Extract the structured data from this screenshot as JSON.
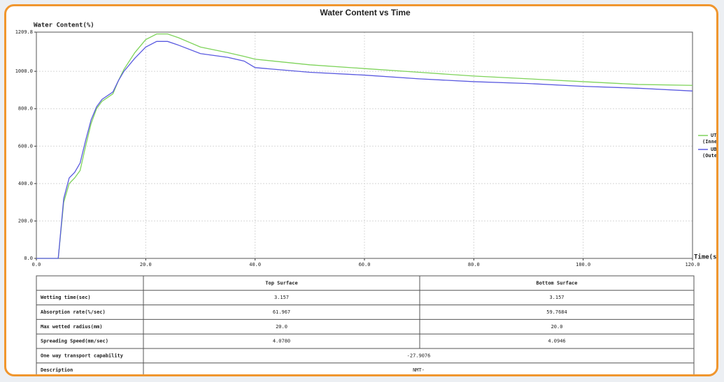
{
  "chart_data": {
    "type": "line",
    "title": "Water Content vs Time",
    "y_label": "Water Content(%)",
    "x_label": "Time(s)",
    "x": [
      0,
      4,
      5,
      6,
      7,
      8,
      9,
      10,
      11,
      12,
      14,
      15,
      16,
      18,
      20,
      22,
      24,
      26,
      30,
      35,
      38,
      40,
      50,
      60,
      70,
      80,
      90,
      100,
      110,
      120
    ],
    "series": [
      {
        "name": "UT (Inner",
        "color": "#7ed35a",
        "values": [
          0,
          0,
          300,
          400,
          430,
          470,
          600,
          720,
          800,
          840,
          880,
          950,
          1010,
          1100,
          1170,
          1200,
          1200,
          1180,
          1130,
          1100,
          1080,
          1065,
          1035,
          1015,
          995,
          975,
          960,
          945,
          930,
          925
        ]
      },
      {
        "name": "UB (Outer",
        "color": "#5a5ae0",
        "values": [
          0,
          0,
          320,
          430,
          460,
          510,
          630,
          740,
          810,
          850,
          890,
          950,
          1000,
          1070,
          1130,
          1160,
          1160,
          1140,
          1095,
          1075,
          1055,
          1020,
          995,
          980,
          960,
          945,
          935,
          920,
          910,
          895
        ]
      }
    ],
    "xlim": [
      0,
      120
    ],
    "xticks": [
      {
        "value": 0,
        "label": "0.0"
      },
      {
        "value": 20,
        "label": "20.0"
      },
      {
        "value": 40,
        "label": "40.0"
      },
      {
        "value": 60,
        "label": "60.0"
      },
      {
        "value": 80,
        "label": "80.0"
      },
      {
        "value": 100,
        "label": "100.0"
      },
      {
        "value": 120,
        "label": "120.0"
      }
    ],
    "ylim": [
      0,
      1209.8
    ],
    "yticks": [
      {
        "value": 0,
        "label": "0.0"
      },
      {
        "value": 200,
        "label": "200.0"
      },
      {
        "value": 400,
        "label": "400.0"
      },
      {
        "value": 600,
        "label": "600.0"
      },
      {
        "value": 800,
        "label": "800.0"
      },
      {
        "value": 1000,
        "label": "1000.0"
      },
      1209.8
    ],
    "grid": true,
    "legend": "right"
  },
  "table": {
    "header": [
      "Top Surface",
      "Bottom Surface"
    ],
    "rows": [
      [
        "Wetting time(sec)",
        "3.157",
        "3.157"
      ],
      [
        "Absorption rate(%/sec)",
        "61.967",
        "59.7684"
      ],
      [
        "Max wetted radius(mm)",
        "20.0",
        "20.0"
      ],
      [
        "Spreading Speed(mm/sec)",
        "4.0780",
        "4.0946"
      ],
      [
        "One way transport capability",
        "-27.9076"
      ],
      [
        "Description",
        "NMT-"
      ]
    ]
  }
}
